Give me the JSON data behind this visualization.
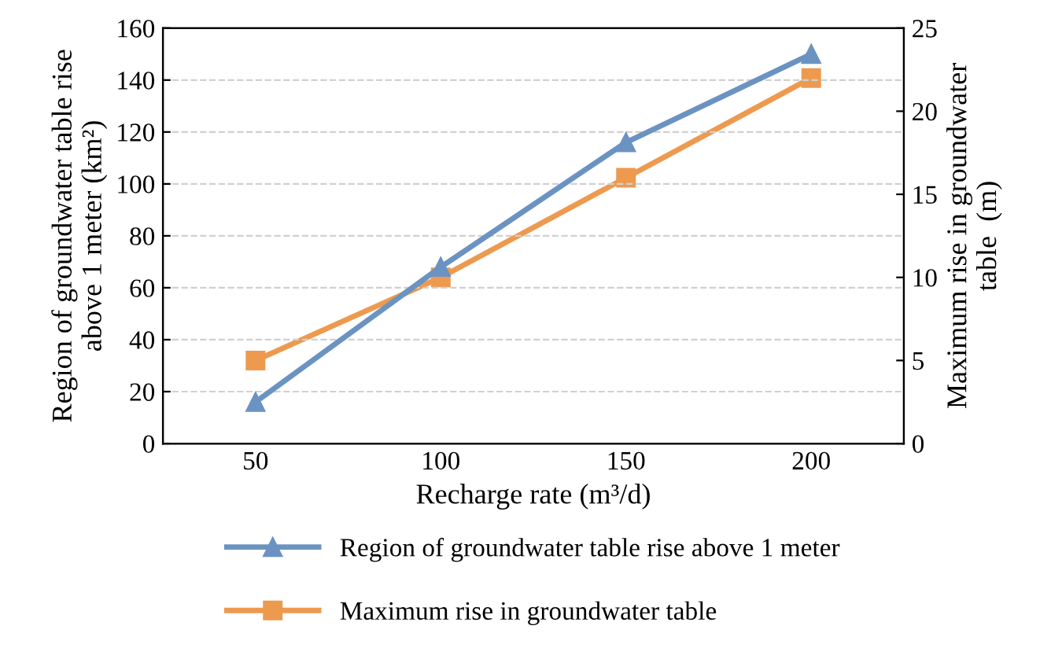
{
  "chart_data": {
    "type": "line",
    "xlabel": "Recharge rate (m³/d)",
    "ylabel": "Region of groundwater table rise\nabove 1 meter (km²)",
    "y2label": "Maximum rise in groundwater\ntable  (m)",
    "categories": [
      "50",
      "100",
      "150",
      "200"
    ],
    "series": [
      {
        "name": "Region of groundwater table rise above 1 meter",
        "color": "#6b93c2",
        "marker": "triangle",
        "values": [
          16,
          68,
          116,
          150
        ]
      },
      {
        "name": "Maximum rise in groundwater table",
        "color": "#ed9a4f",
        "marker": "square",
        "axis": "y2",
        "values": [
          5,
          10,
          16,
          22
        ]
      }
    ],
    "ylim": [
      0,
      160
    ],
    "yticks": [
      0,
      20,
      40,
      60,
      80,
      100,
      120,
      140,
      160
    ],
    "y2lim": [
      0,
      25
    ],
    "y2ticks": [
      0,
      5,
      10,
      15,
      20,
      25
    ],
    "grid": "y",
    "legend": "bottom",
    "line_style": "solid"
  }
}
